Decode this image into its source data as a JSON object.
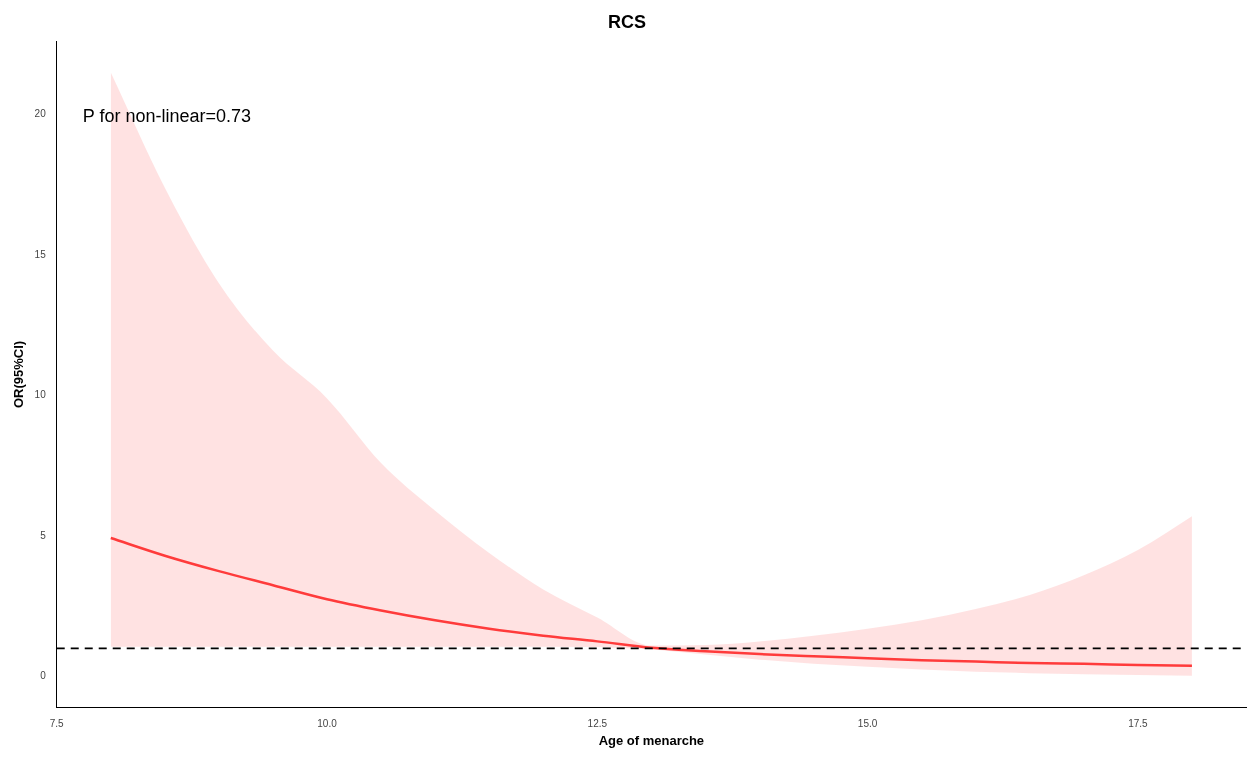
{
  "chart_data": {
    "type": "line",
    "title": "RCS",
    "xlabel": "Age of menarche",
    "ylabel": "OR(95%CI)",
    "x": [
      8,
      8.5,
      9,
      9.5,
      10,
      10.5,
      11,
      11.5,
      12,
      12.5,
      13,
      13.5,
      14,
      14.5,
      15,
      15.5,
      16,
      16.5,
      17,
      17.5,
      18
    ],
    "series": [
      {
        "color": "#ff3b3b",
        "values": [
          4.93,
          4.3,
          3.75,
          3.25,
          2.75,
          2.35,
          2.0,
          1.7,
          1.45,
          1.25,
          1.02,
          0.9,
          0.8,
          0.72,
          0.65,
          0.58,
          0.53,
          0.48,
          0.45,
          0.41,
          0.38
        ],
        "lower": [
          1.06,
          1.06,
          1.06,
          1.06,
          1.06,
          1.06,
          1.06,
          1.06,
          1.06,
          1.05,
          0.97,
          0.78,
          0.6,
          0.45,
          0.35,
          0.25,
          0.17,
          0.12,
          0.08,
          0.05,
          0.03
        ],
        "upper": [
          21.5,
          17.4,
          14.0,
          11.6,
          9.9,
          7.6,
          5.9,
          4.4,
          3.1,
          2.1,
          1.1,
          1.12,
          1.25,
          1.45,
          1.7,
          2.0,
          2.4,
          2.9,
          3.6,
          4.5,
          5.7
        ]
      }
    ],
    "xlim": [
      7.5,
      18.5
    ],
    "xticks": [
      {
        "value": 7.5,
        "label": "7.5"
      },
      {
        "value": 10,
        "label": "10.0"
      },
      {
        "value": 12.5,
        "label": "12.5"
      },
      {
        "value": 15,
        "label": "15.0"
      },
      {
        "value": 17.5,
        "label": "17.5"
      }
    ],
    "ylim": [
      -1.1,
      22.6
    ],
    "yticks": [
      0,
      5,
      10,
      15,
      20
    ],
    "ref_lines": [
      {
        "axis": "y",
        "value": 1,
        "color": "#000000",
        "line_style": "dashed"
      }
    ],
    "annotations": [
      "P for non-linear=0.73"
    ],
    "grid": false,
    "legend": false,
    "marker": "none",
    "line_style": "solid"
  }
}
